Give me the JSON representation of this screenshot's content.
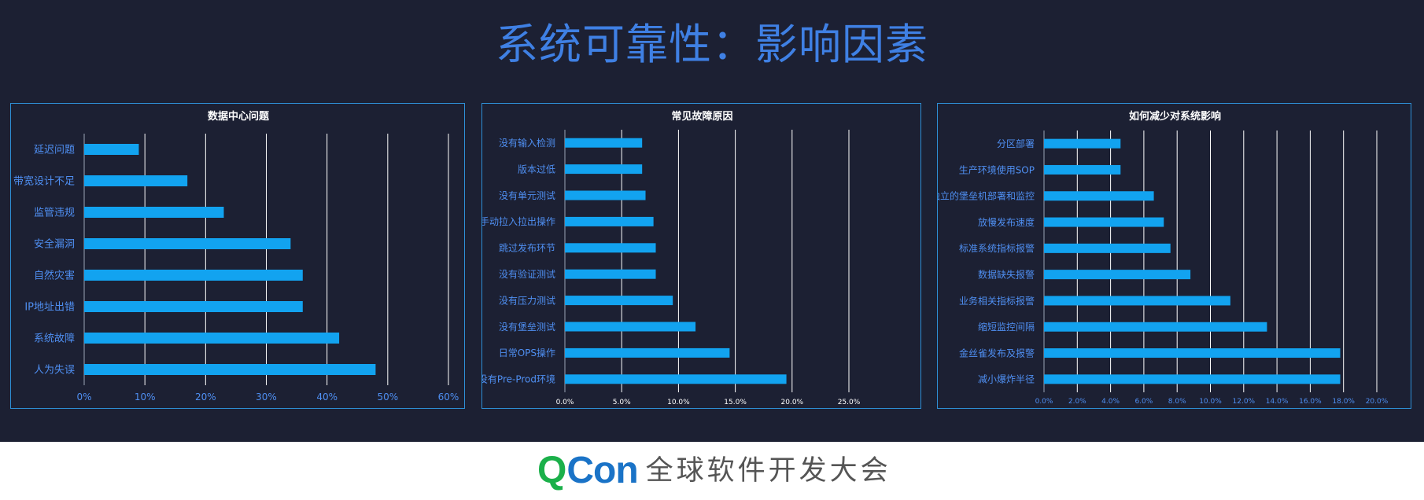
{
  "page": {
    "title": "系统可靠性：影响因素"
  },
  "colors": {
    "background": "#1c2033",
    "title": "#3f80e4",
    "bar": "#12a3f0",
    "category_label": "#4f8ff2",
    "panel_border": "#2e8fd6",
    "grid": "#ffffff"
  },
  "footer": {
    "logo_q": "Q",
    "logo_con": "Con",
    "logo_text": "全球软件开发大会"
  },
  "chart_data": [
    {
      "type": "bar",
      "orientation": "horizontal",
      "title": "数据中心问题",
      "categories": [
        "延迟问题",
        "带宽设计不足",
        "监管违规",
        "安全漏洞",
        "自然灾害",
        "IP地址出错",
        "系统故障",
        "人为失误"
      ],
      "values": [
        9,
        17,
        23,
        34,
        36,
        36,
        42,
        48
      ],
      "value_unit": "%",
      "xlim": [
        0,
        60
      ],
      "xticks": [
        "0%",
        "10%",
        "20%",
        "30%",
        "40%",
        "50%",
        "60%"
      ],
      "grid": true,
      "legend": "none"
    },
    {
      "type": "bar",
      "orientation": "horizontal",
      "title": "常见故障原因",
      "categories": [
        "没有输入检测",
        "版本过低",
        "没有单元测试",
        "手动拉入拉出操作",
        "跳过发布环节",
        "没有验证测试",
        "没有压力测试",
        "没有堡垒测试",
        "日常OPS操作",
        "没有Pre-Prod环境"
      ],
      "values": [
        6.8,
        6.8,
        7.1,
        7.8,
        8.0,
        8.0,
        9.5,
        11.5,
        14.5,
        19.5
      ],
      "value_unit": "%",
      "xlim": [
        0,
        25
      ],
      "xticks": [
        "0.0%",
        "5.0%",
        "10.0%",
        "15.0%",
        "20.0%",
        "25.0%"
      ],
      "grid": true,
      "legend": "none"
    },
    {
      "type": "bar",
      "orientation": "horizontal",
      "title": "如何减少对系统影响",
      "categories": [
        "分区部署",
        "生产环境使用SOP",
        "独立的堡垒机部署和监控",
        "放慢发布速度",
        "标准系统指标报警",
        "数据缺失报警",
        "业务相关指标报警",
        "缩短监控间隔",
        "金丝雀发布及报警",
        "减小爆炸半径"
      ],
      "values": [
        4.6,
        4.6,
        6.6,
        7.2,
        7.6,
        8.8,
        11.2,
        13.4,
        17.8,
        17.8
      ],
      "value_unit": "%",
      "xlim": [
        0,
        20
      ],
      "xticks": [
        "0.0%",
        "2.0%",
        "4.0%",
        "6.0%",
        "8.0%",
        "10.0%",
        "12.0%",
        "14.0%",
        "16.0%",
        "18.0%",
        "20.0%"
      ],
      "grid": true,
      "legend": "none"
    }
  ]
}
